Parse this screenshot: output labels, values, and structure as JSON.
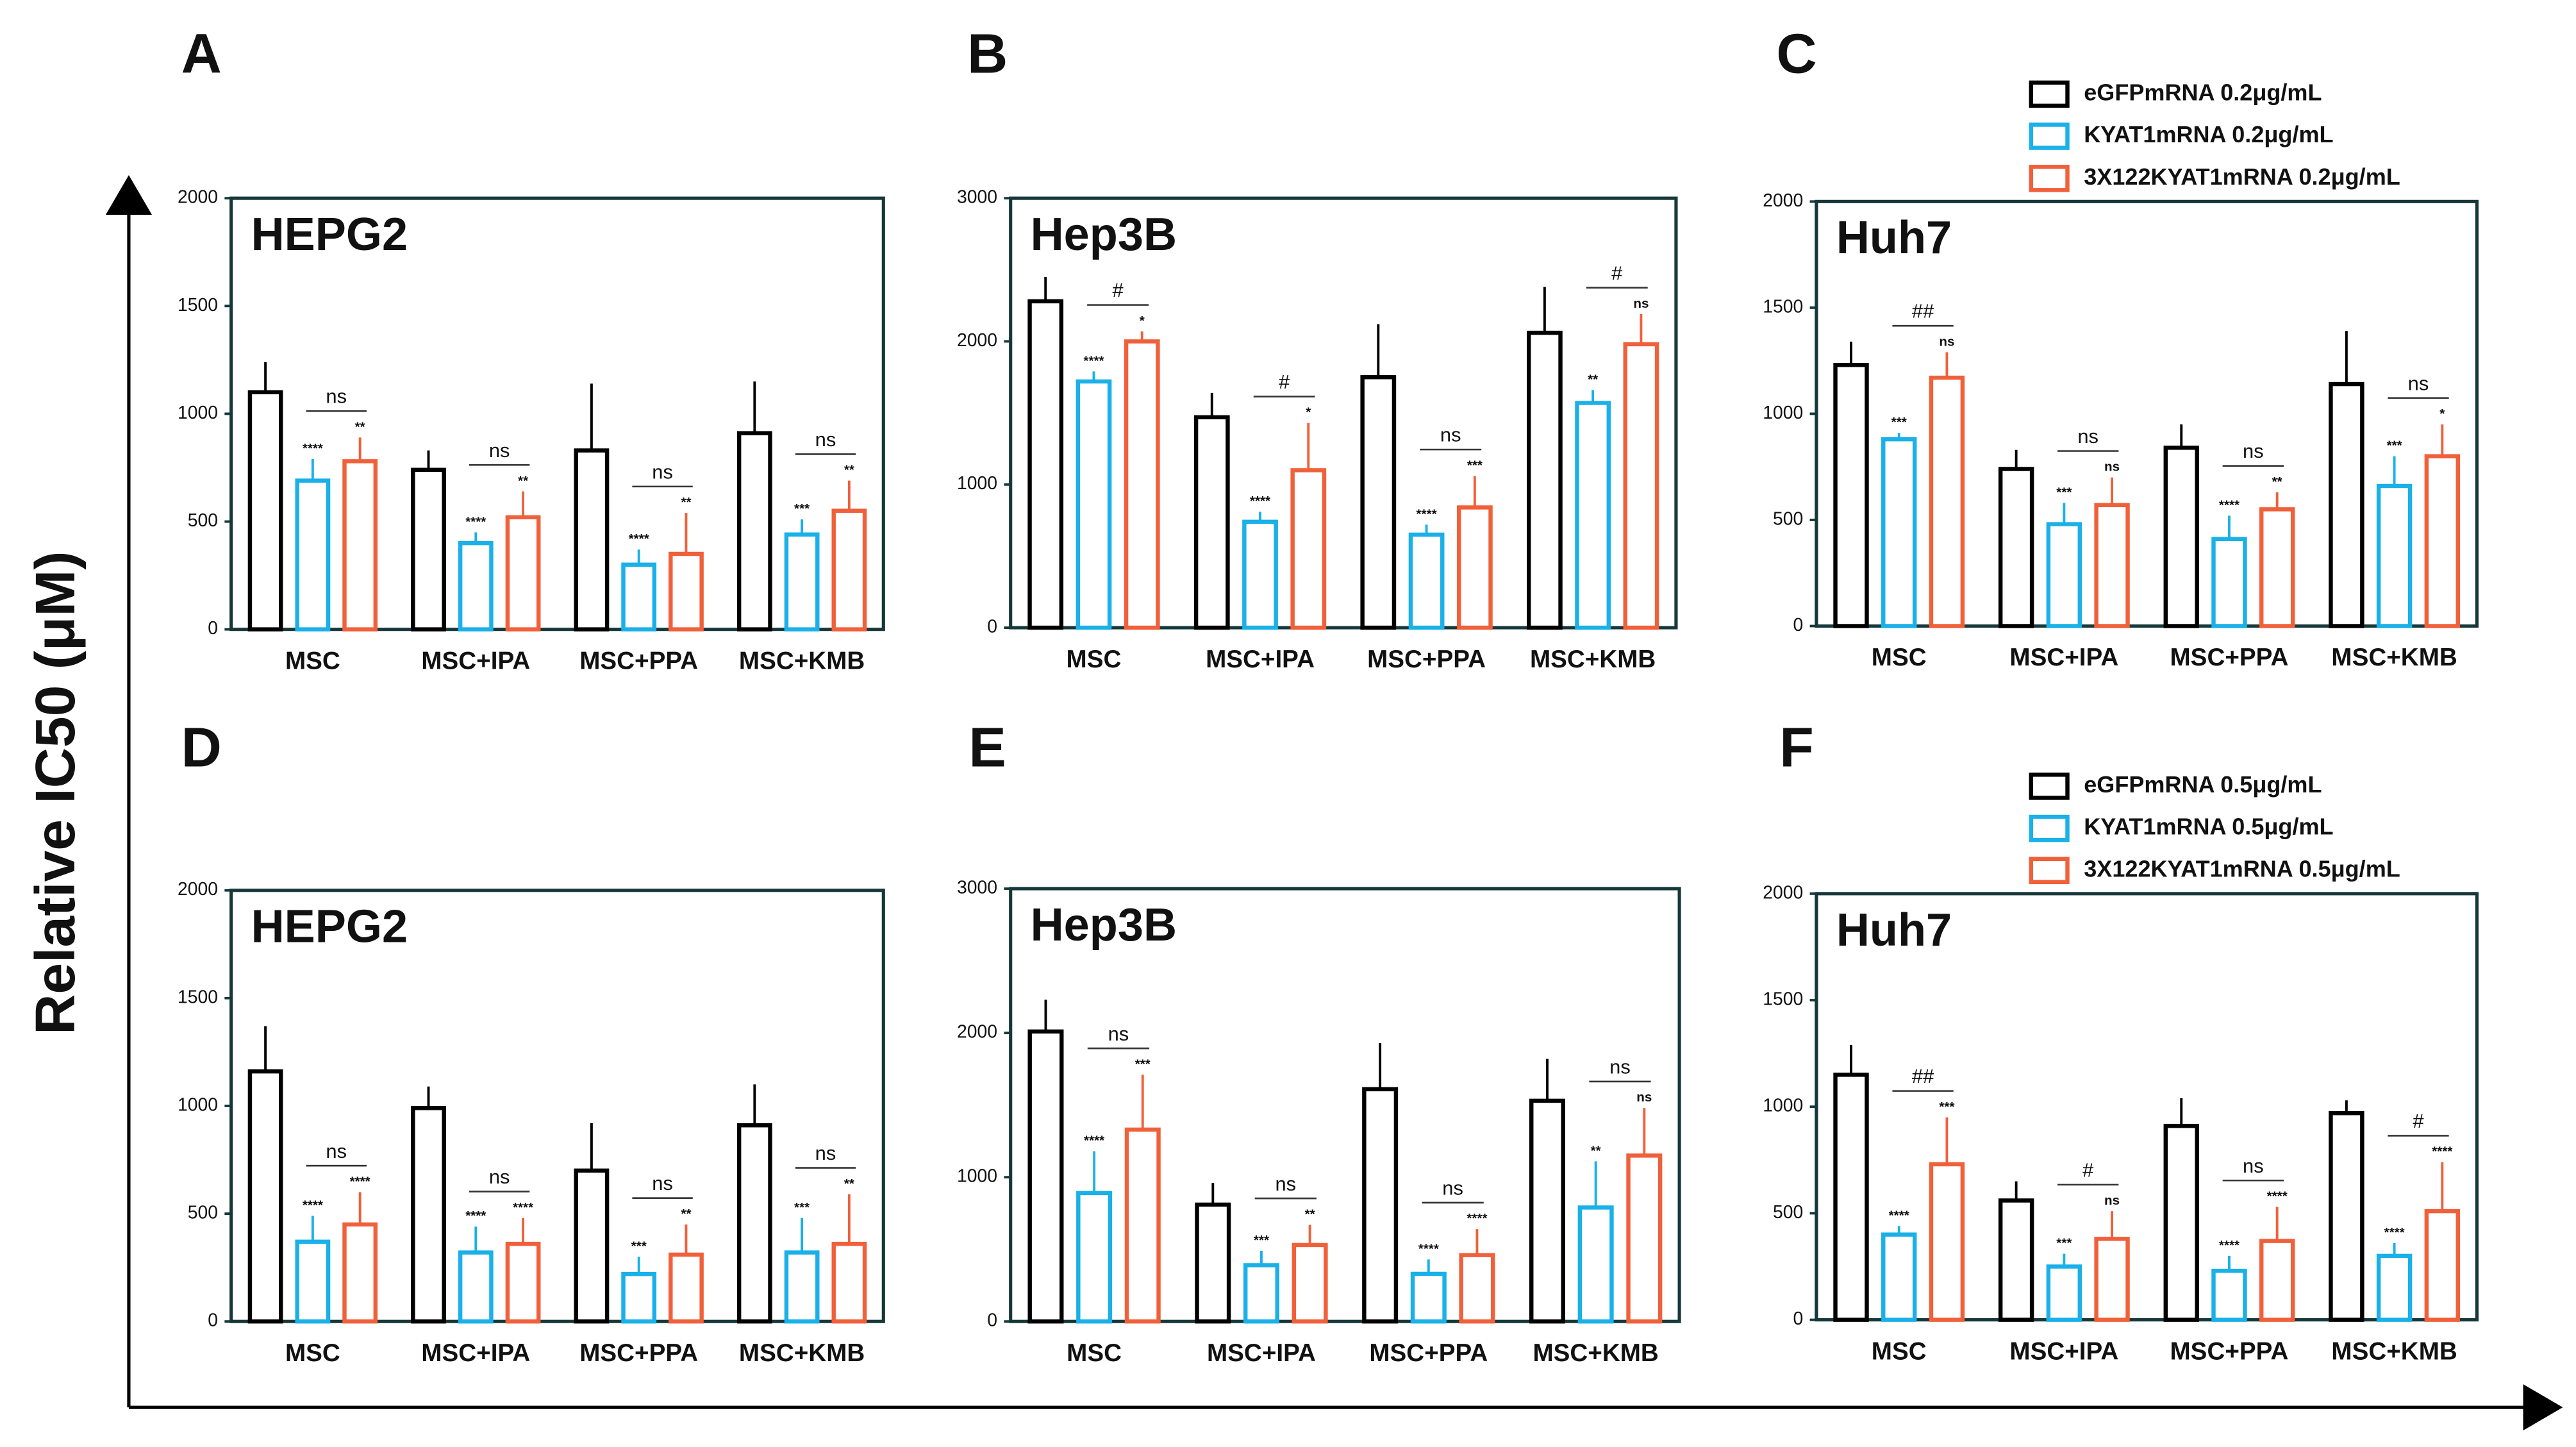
{
  "y_axis_label": "Relative IC50 (μM)",
  "chart_data": [
    {
      "type": "bar",
      "panel_label": "A",
      "title": "HEPG2",
      "categories": [
        "MSC",
        "MSC+IPA",
        "MSC+PPA",
        "MSC+KMB"
      ],
      "ylim": [
        0,
        2000
      ],
      "yticks": [
        0,
        500,
        1000,
        1500,
        2000
      ],
      "series": [
        {
          "color": "#000000",
          "values": [
            1100,
            740,
            830,
            910
          ],
          "errors": [
            140,
            90,
            310,
            240
          ]
        },
        {
          "color": "#1ab0e8",
          "values": [
            690,
            400,
            300,
            440
          ],
          "errors": [
            100,
            50,
            70,
            70
          ],
          "stars": [
            "****",
            "****",
            "****",
            "***"
          ]
        },
        {
          "color": "#f0603a",
          "values": [
            780,
            520,
            350,
            550
          ],
          "errors": [
            110,
            120,
            190,
            140
          ],
          "stars": [
            "**",
            "**",
            "**",
            "**"
          ]
        }
      ],
      "bracket_labels": [
        "ns",
        "ns",
        "ns",
        "ns"
      ]
    },
    {
      "type": "bar",
      "panel_label": "B",
      "title": "Hep3B",
      "categories": [
        "MSC",
        "MSC+IPA",
        "MSC+PPA",
        "MSC+KMB"
      ],
      "ylim": [
        0,
        3000
      ],
      "yticks": [
        0,
        1000,
        2000,
        3000
      ],
      "series": [
        {
          "color": "#000000",
          "values": [
            2280,
            1470,
            1750,
            2060
          ],
          "errors": [
            170,
            170,
            370,
            320
          ]
        },
        {
          "color": "#1ab0e8",
          "values": [
            1720,
            740,
            650,
            1570
          ],
          "errors": [
            70,
            70,
            70,
            90
          ],
          "stars": [
            "****",
            "****",
            "****",
            "**"
          ]
        },
        {
          "color": "#f0603a",
          "values": [
            2000,
            1100,
            840,
            1980
          ],
          "errors": [
            70,
            330,
            220,
            210
          ],
          "stars": [
            "*",
            "*",
            "***",
            "ns"
          ]
        }
      ],
      "bracket_labels": [
        "#",
        "#",
        "ns",
        "#"
      ]
    },
    {
      "type": "bar",
      "panel_label": "C",
      "title": "Huh7",
      "categories": [
        "MSC",
        "MSC+IPA",
        "MSC+PPA",
        "MSC+KMB"
      ],
      "ylim": [
        0,
        2000
      ],
      "yticks": [
        0,
        500,
        1000,
        1500,
        2000
      ],
      "legend": "above",
      "series": [
        {
          "name": "eGFPmRNA 0.2μg/mL",
          "color": "#000000",
          "values": [
            1230,
            740,
            840,
            1140
          ],
          "errors": [
            110,
            90,
            110,
            250
          ]
        },
        {
          "name": "KYAT1mRNA 0.2μg/mL",
          "color": "#1ab0e8",
          "values": [
            880,
            480,
            410,
            660
          ],
          "errors": [
            30,
            100,
            110,
            140
          ],
          "stars": [
            "***",
            "***",
            "****",
            "***"
          ]
        },
        {
          "name": "3X122KYAT1mRNA 0.2μg/mL",
          "color": "#f0603a",
          "values": [
            1170,
            570,
            550,
            800
          ],
          "errors": [
            120,
            130,
            80,
            150
          ],
          "stars": [
            "ns",
            "ns",
            "**",
            "*"
          ]
        }
      ],
      "bracket_labels": [
        "##",
        "ns",
        "ns",
        "ns"
      ]
    },
    {
      "type": "bar",
      "panel_label": "D",
      "title": "HEPG2",
      "categories": [
        "MSC",
        "MSC+IPA",
        "MSC+PPA",
        "MSC+KMB"
      ],
      "ylim": [
        0,
        2000
      ],
      "yticks": [
        0,
        500,
        1000,
        1500,
        2000
      ],
      "series": [
        {
          "color": "#000000",
          "values": [
            1160,
            990,
            700,
            910
          ],
          "errors": [
            210,
            100,
            220,
            190
          ]
        },
        {
          "color": "#1ab0e8",
          "values": [
            370,
            320,
            220,
            320
          ],
          "errors": [
            120,
            120,
            80,
            160
          ],
          "stars": [
            "****",
            "****",
            "***",
            "***"
          ]
        },
        {
          "color": "#f0603a",
          "values": [
            450,
            360,
            310,
            360
          ],
          "errors": [
            150,
            120,
            140,
            230
          ],
          "stars": [
            "****",
            "****",
            "**",
            "**"
          ]
        }
      ],
      "bracket_labels": [
        "ns",
        "ns",
        "ns",
        "ns"
      ]
    },
    {
      "type": "bar",
      "panel_label": "E",
      "title": "Hep3B",
      "categories": [
        "MSC",
        "MSC+IPA",
        "MSC+PPA",
        "MSC+KMB"
      ],
      "ylim": [
        0,
        3000
      ],
      "yticks": [
        0,
        1000,
        2000,
        3000
      ],
      "series": [
        {
          "color": "#000000",
          "values": [
            2010,
            810,
            1610,
            1530
          ],
          "errors": [
            220,
            150,
            320,
            290
          ]
        },
        {
          "color": "#1ab0e8",
          "values": [
            890,
            390,
            330,
            790
          ],
          "errors": [
            290,
            100,
            100,
            320
          ],
          "stars": [
            "****",
            "***",
            "****",
            "**"
          ]
        },
        {
          "color": "#f0603a",
          "values": [
            1330,
            530,
            460,
            1150
          ],
          "errors": [
            380,
            140,
            180,
            330
          ],
          "stars": [
            "***",
            "**",
            "****",
            "ns"
          ]
        }
      ],
      "bracket_labels": [
        "ns",
        "ns",
        "ns",
        "ns"
      ]
    },
    {
      "type": "bar",
      "panel_label": "F",
      "title": "Huh7",
      "categories": [
        "MSC",
        "MSC+IPA",
        "MSC+PPA",
        "MSC+KMB"
      ],
      "ylim": [
        0,
        2000
      ],
      "yticks": [
        0,
        500,
        1000,
        1500,
        2000
      ],
      "legend": "above",
      "series": [
        {
          "name": "eGFPmRNA 0.5μg/mL",
          "color": "#000000",
          "values": [
            1150,
            560,
            910,
            970
          ],
          "errors": [
            140,
            90,
            130,
            60
          ]
        },
        {
          "name": "KYAT1mRNA 0.5μg/mL",
          "color": "#1ab0e8",
          "values": [
            400,
            250,
            230,
            300
          ],
          "errors": [
            40,
            60,
            70,
            60
          ],
          "stars": [
            "****",
            "***",
            "****",
            "****"
          ]
        },
        {
          "name": "3X122KYAT1mRNA 0.5μg/mL",
          "color": "#f0603a",
          "values": [
            730,
            380,
            370,
            510
          ],
          "errors": [
            220,
            130,
            160,
            230
          ],
          "stars": [
            "***",
            "ns",
            "****",
            "****"
          ]
        }
      ],
      "bracket_labels": [
        "##",
        "#",
        "ns",
        "#"
      ]
    }
  ]
}
